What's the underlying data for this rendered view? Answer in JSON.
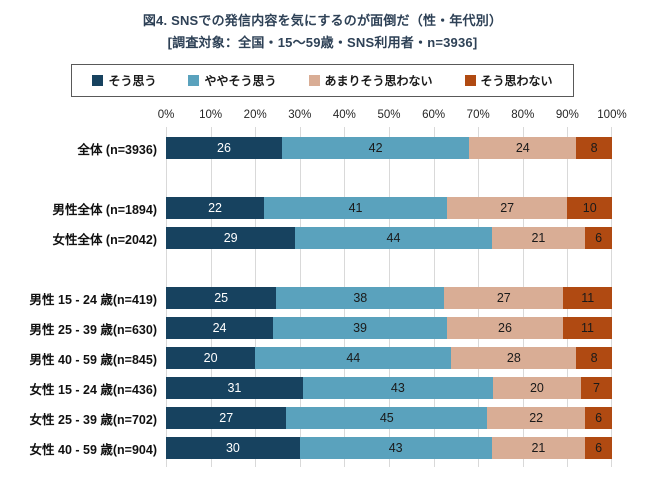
{
  "title": "図4. SNSでの発信内容を気にするのが面倒だ（性・年代別）",
  "subtitle": "[調査対象：全国・15～59歳・SNS利用者・n=3936]",
  "chart_data": {
    "type": "bar",
    "stacked": true,
    "orientation": "horizontal",
    "unit": "%",
    "grid": true,
    "legend_position": "top",
    "xlim": [
      0,
      100
    ],
    "x_axis_ticks": [
      "0%",
      "10%",
      "20%",
      "30%",
      "40%",
      "50%",
      "60%",
      "70%",
      "80%",
      "90%",
      "100%"
    ],
    "categories": [
      "全体 (n=3936)",
      "男性全体 (n=1894)",
      "女性全体 (n=2042)",
      "男性 15 - 24 歳(n=419)",
      "男性 25 - 39 歳(n=630)",
      "男性 40 - 59 歳(n=845)",
      "女性 15 - 24 歳(n=436)",
      "女性 25 - 39 歳(n=702)",
      "女性 40 - 59 歳(n=904)"
    ],
    "groups": [
      [
        0
      ],
      [
        1,
        2
      ],
      [
        3,
        4,
        5,
        6,
        7,
        8
      ]
    ],
    "series": [
      {
        "name": "そう思う",
        "color": "#17425f",
        "label_color": "#ffffff",
        "values": [
          26,
          22,
          29,
          25,
          24,
          20,
          31,
          27,
          30
        ]
      },
      {
        "name": "ややそう思う",
        "color": "#5aa2bd",
        "label_color": "#1a1a1a",
        "values": [
          42,
          41,
          44,
          38,
          39,
          44,
          43,
          45,
          43
        ]
      },
      {
        "name": "あまりそう思わない",
        "color": "#d9ad95",
        "label_color": "#1a1a1a",
        "values": [
          24,
          27,
          21,
          27,
          26,
          28,
          20,
          22,
          21
        ]
      },
      {
        "name": "そう思わない",
        "color": "#b04a12",
        "label_color": "#1a1a1a",
        "values": [
          8,
          10,
          6,
          11,
          11,
          8,
          7,
          6,
          6
        ]
      }
    ]
  }
}
